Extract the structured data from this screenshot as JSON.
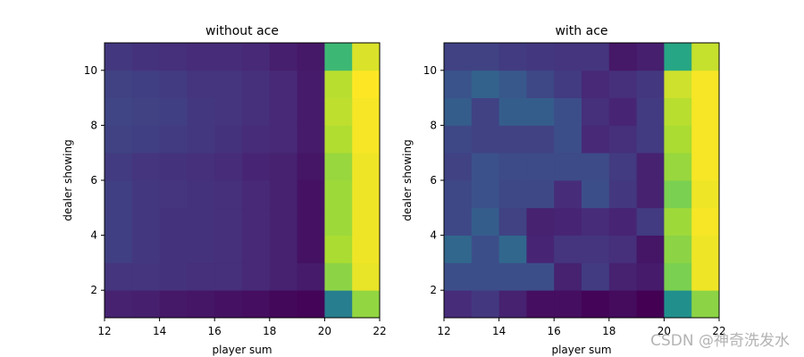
{
  "chart_data": [
    {
      "type": "heatmap",
      "title": "without ace",
      "xlabel": "player sum",
      "ylabel": "dealer showing",
      "x_range": [
        12,
        22
      ],
      "y_range": [
        1,
        11
      ],
      "x_ticks": [
        12,
        14,
        16,
        18,
        20,
        22
      ],
      "y_ticks": [
        2,
        4,
        6,
        8,
        10
      ],
      "colormap": "viridis",
      "value_range": [
        0,
        1
      ],
      "player_sums": [
        12,
        13,
        14,
        15,
        16,
        17,
        18,
        19,
        20,
        21
      ],
      "dealer_cards": [
        1,
        2,
        3,
        4,
        5,
        6,
        7,
        8,
        9,
        10
      ],
      "values": [
        [
          0.1,
          0.09,
          0.07,
          0.06,
          0.05,
          0.04,
          0.02,
          0.01,
          0.43,
          0.84
        ],
        [
          0.16,
          0.16,
          0.15,
          0.14,
          0.14,
          0.12,
          0.1,
          0.08,
          0.83,
          0.97
        ],
        [
          0.19,
          0.17,
          0.15,
          0.15,
          0.14,
          0.12,
          0.1,
          0.05,
          0.88,
          0.98
        ],
        [
          0.19,
          0.17,
          0.15,
          0.15,
          0.14,
          0.12,
          0.1,
          0.05,
          0.86,
          0.98
        ],
        [
          0.19,
          0.17,
          0.16,
          0.15,
          0.14,
          0.12,
          0.1,
          0.05,
          0.86,
          0.98
        ],
        [
          0.18,
          0.16,
          0.15,
          0.14,
          0.13,
          0.11,
          0.1,
          0.06,
          0.85,
          0.98
        ],
        [
          0.2,
          0.19,
          0.18,
          0.17,
          0.15,
          0.13,
          0.12,
          0.08,
          0.89,
          0.99
        ],
        [
          0.21,
          0.2,
          0.19,
          0.17,
          0.16,
          0.14,
          0.12,
          0.08,
          0.91,
          0.99
        ],
        [
          0.2,
          0.19,
          0.18,
          0.16,
          0.16,
          0.14,
          0.12,
          0.08,
          0.9,
          1.0
        ],
        [
          0.17,
          0.15,
          0.14,
          0.13,
          0.13,
          0.12,
          0.09,
          0.07,
          0.68,
          0.95
        ]
      ]
    },
    {
      "type": "heatmap",
      "title": "with ace",
      "xlabel": "player sum",
      "ylabel": "dealer showing",
      "x_range": [
        12,
        22
      ],
      "y_range": [
        1,
        11
      ],
      "x_ticks": [
        12,
        14,
        16,
        18,
        20,
        22
      ],
      "y_ticks": [
        2,
        4,
        6,
        8,
        10
      ],
      "colormap": "viridis",
      "value_range": [
        0,
        1
      ],
      "player_sums": [
        12,
        13,
        14,
        15,
        16,
        17,
        18,
        19,
        20,
        21
      ],
      "dealer_cards": [
        1,
        2,
        3,
        4,
        5,
        6,
        7,
        8,
        9,
        10
      ],
      "values": [
        [
          0.13,
          0.17,
          0.1,
          0.04,
          0.04,
          0.01,
          0.03,
          0.0,
          0.5,
          0.83
        ],
        [
          0.24,
          0.24,
          0.24,
          0.24,
          0.1,
          0.18,
          0.1,
          0.08,
          0.8,
          0.98
        ],
        [
          0.34,
          0.24,
          0.34,
          0.11,
          0.16,
          0.16,
          0.14,
          0.06,
          0.83,
          0.98
        ],
        [
          0.22,
          0.3,
          0.2,
          0.1,
          0.11,
          0.13,
          0.11,
          0.18,
          0.86,
          0.99
        ],
        [
          0.22,
          0.25,
          0.22,
          0.22,
          0.13,
          0.24,
          0.17,
          0.1,
          0.8,
          0.98
        ],
        [
          0.2,
          0.25,
          0.23,
          0.23,
          0.23,
          0.23,
          0.18,
          0.1,
          0.85,
          0.99
        ],
        [
          0.22,
          0.2,
          0.2,
          0.2,
          0.24,
          0.12,
          0.14,
          0.18,
          0.88,
          0.99
        ],
        [
          0.3,
          0.2,
          0.3,
          0.3,
          0.24,
          0.14,
          0.11,
          0.18,
          0.9,
          0.99
        ],
        [
          0.26,
          0.32,
          0.28,
          0.22,
          0.18,
          0.12,
          0.14,
          0.17,
          0.93,
          0.99
        ],
        [
          0.2,
          0.2,
          0.18,
          0.17,
          0.16,
          0.16,
          0.07,
          0.09,
          0.6,
          0.92
        ]
      ]
    }
  ],
  "watermark": "CSDN @神奇洗发水"
}
